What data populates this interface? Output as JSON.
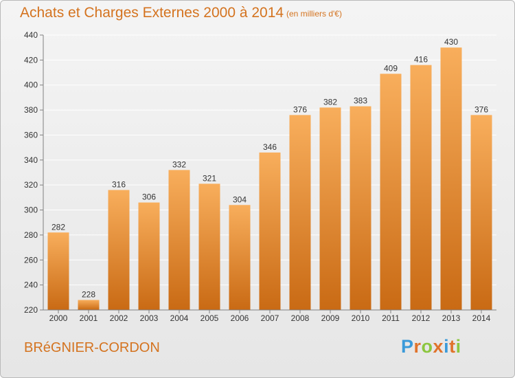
{
  "title": "Achats et Charges Externes 2000 à 2014",
  "subtitle": "(en milliers d'€)",
  "commune": "BRéGNIER-CORDON",
  "logo": {
    "text": "Proxiti",
    "letter_colors": [
      "#3a9ad9",
      "#e0732b",
      "#8cc63f",
      "#e0732b",
      "#3a9ad9",
      "#e0732b",
      "#8cc63f"
    ]
  },
  "colors": {
    "bar_top": "#f8ae5c",
    "bar_bottom": "#c96a14",
    "title": "#d4731f",
    "axis": "#7f7f7f",
    "grid": "#ffffff"
  },
  "chart_data": {
    "type": "bar",
    "categories": [
      "2000",
      "2001",
      "2002",
      "2003",
      "2004",
      "2005",
      "2006",
      "2007",
      "2008",
      "2009",
      "2010",
      "2011",
      "2012",
      "2013",
      "2014"
    ],
    "values": [
      282,
      228,
      316,
      306,
      332,
      321,
      304,
      346,
      376,
      382,
      383,
      409,
      416,
      430,
      376
    ],
    "ylim": [
      220,
      440
    ],
    "yticks": [
      220,
      240,
      260,
      280,
      300,
      320,
      340,
      360,
      380,
      400,
      420,
      440
    ],
    "grid": true,
    "data_labels": true
  }
}
